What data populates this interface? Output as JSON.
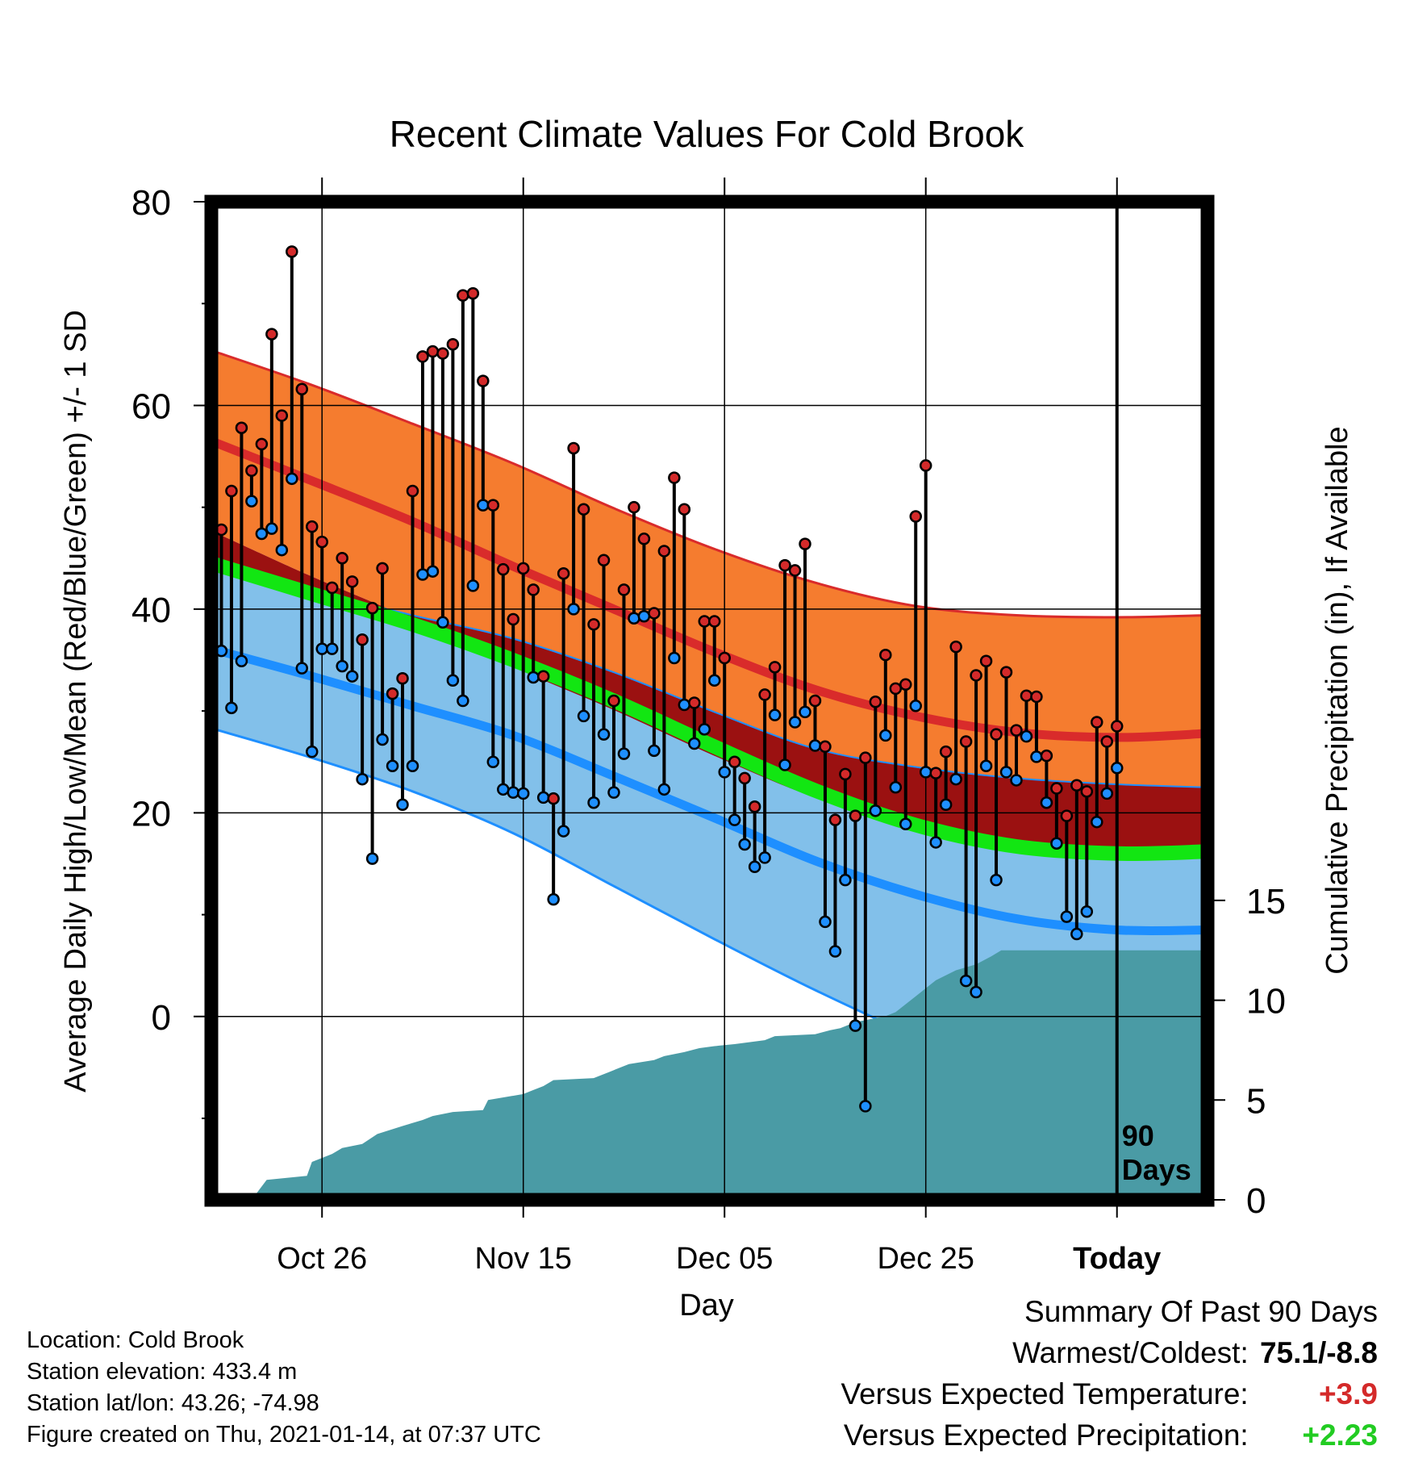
{
  "title": "Recent Climate Values For Cold Brook",
  "footer": {
    "location": "Location: Cold Brook",
    "elevation": "Station elevation: 433.4 m",
    "latlon": "Station lat/lon: 43.26; -74.98",
    "created": "Figure created on Thu, 2021-01-14, at 07:37 UTC"
  },
  "summary": {
    "heading": "Summary Of Past 90 Days",
    "warmest_coldest_label": "Warmest/Coldest:",
    "warmest_coldest_value": "75.1/-8.8",
    "temp_label": "Versus Expected Temperature:",
    "temp_value": "+3.9",
    "precip_label": "Versus Expected Precipitation:",
    "precip_value": "+2.23"
  },
  "chart_data": {
    "type": "line",
    "xlabel": "Day",
    "ylabel": "Average Daily High/Low/Mean (Red/Blue/Green) +/- 1 SD",
    "y2label": "Cumulative Precipitation (in), If Available",
    "ylim": [
      -18,
      80
    ],
    "y2lim": [
      0,
      50
    ],
    "xlim": [
      -90,
      9
    ],
    "x_tick_days": [
      -79,
      -59,
      -39,
      -19,
      0
    ],
    "x_tick_labels": [
      "Oct 26",
      "Nov 15",
      "Dec 05",
      "Dec 25",
      "Today"
    ],
    "y_ticks": [
      0,
      20,
      40,
      60,
      80
    ],
    "y_minor_ticks": [
      -10,
      10,
      30,
      50,
      70
    ],
    "y2_ticks": [
      0,
      5,
      10,
      15
    ],
    "today_marker_label": [
      "90",
      "Days"
    ],
    "colors": {
      "high_band": "#f57c2f",
      "high_line": "#d92b2b",
      "high_edge": "#d92b2b",
      "low_band": "#82c0ea",
      "low_line": "#1e8fff",
      "low_edge": "#1e8fff",
      "mean_line": "#12e612",
      "overlap_band": "#9b1111",
      "precip_fill": "#4a9ba5",
      "high_dot": "#d42a2a",
      "low_dot": "#1e8fff"
    },
    "normals": {
      "x": [
        -90,
        -80,
        -70,
        -60,
        -50,
        -40,
        -30,
        -20,
        -10,
        0,
        9
      ],
      "high_upper": [
        65.4,
        62.0,
        58.2,
        54.3,
        49.9,
        45.9,
        42.6,
        40.3,
        39.4,
        39.2,
        39.4
      ],
      "high_mean": [
        56.5,
        52.6,
        48.6,
        44.2,
        40.0,
        35.8,
        32.1,
        29.5,
        27.9,
        27.4,
        27.8
      ],
      "high_lower": [
        47.7,
        43.2,
        39.0,
        34.3,
        30.1,
        25.6,
        21.5,
        18.6,
        16.6,
        15.9,
        16.1
      ],
      "low_upper": [
        45.2,
        41.9,
        39.4,
        37.1,
        33.8,
        29.9,
        26.3,
        24.5,
        23.4,
        22.8,
        22.5
      ],
      "low_mean": [
        36.1,
        33.4,
        30.5,
        27.6,
        23.6,
        19.5,
        15.3,
        12.0,
        9.6,
        8.5,
        8.5
      ],
      "low_lower": [
        28.3,
        25.4,
        22.1,
        18.0,
        12.8,
        7.6,
        2.6,
        -1.9,
        -5.5,
        -7.4,
        -8.0
      ],
      "mean": [
        44.5,
        41.5,
        38.5,
        35.0,
        31.0,
        26.5,
        22.2,
        18.8,
        16.7,
        16.0,
        16.2
      ]
    },
    "daily": {
      "x": [
        -89,
        -88,
        -87,
        -86,
        -85,
        -84,
        -83,
        -82,
        -81,
        -80,
        -79,
        -78,
        -77,
        -76,
        -75,
        -74,
        -73,
        -72,
        -71,
        -70,
        -69,
        -68,
        -67,
        -66,
        -65,
        -64,
        -63,
        -62,
        -61,
        -60,
        -59,
        -58,
        -57,
        -56,
        -55,
        -54,
        -53,
        -52,
        -51,
        -50,
        -49,
        -48,
        -47,
        -46,
        -45,
        -44,
        -43,
        -42,
        -41,
        -40,
        -39,
        -38,
        -37,
        -36,
        -35,
        -34,
        -33,
        -32,
        -31,
        -30,
        -29,
        -28,
        -27,
        -26,
        -25,
        -24,
        -23,
        -22,
        -21,
        -20,
        -19,
        -18,
        -17,
        -16,
        -15,
        -14,
        -13,
        -12,
        -11,
        -10,
        -9,
        -8,
        -7,
        -6,
        -5,
        -4,
        -3,
        -2,
        -1,
        0
      ],
      "high": [
        47.8,
        51.6,
        57.8,
        53.6,
        56.2,
        67.0,
        59.0,
        75.1,
        61.6,
        48.1,
        46.6,
        42.1,
        45.0,
        42.7,
        37.0,
        40.1,
        44.0,
        31.7,
        33.2,
        51.6,
        64.8,
        65.3,
        65.1,
        66.0,
        70.8,
        71.0,
        62.4,
        50.2,
        43.9,
        39.0,
        44.0,
        41.9,
        33.4,
        21.4,
        43.5,
        55.8,
        49.8,
        38.5,
        44.8,
        31.0,
        41.9,
        50.0,
        46.9,
        39.6,
        45.7,
        52.9,
        49.8,
        30.8,
        38.8,
        38.8,
        35.2,
        25.0,
        23.4,
        20.6,
        31.6,
        34.3,
        44.3,
        43.8,
        46.4,
        31.0,
        26.5,
        19.3,
        23.8,
        19.7,
        25.4,
        30.9,
        35.5,
        32.2,
        32.6,
        49.1,
        54.1,
        23.9,
        26.0,
        36.3,
        27.0,
        33.5,
        34.9,
        27.7,
        33.8,
        28.1,
        31.5,
        31.4,
        25.6,
        22.4,
        19.7,
        22.7,
        22.1,
        28.9,
        27.0,
        28.5
      ],
      "low": [
        35.9,
        30.3,
        34.9,
        50.6,
        47.4,
        47.9,
        45.8,
        52.8,
        34.2,
        26.0,
        36.1,
        36.1,
        34.4,
        33.4,
        23.3,
        15.5,
        27.2,
        24.6,
        20.8,
        24.6,
        43.4,
        43.7,
        38.7,
        33.0,
        31.0,
        42.3,
        50.2,
        25.0,
        22.3,
        22.0,
        21.9,
        33.3,
        21.5,
        11.5,
        18.2,
        40.0,
        29.5,
        21.0,
        27.7,
        22.0,
        25.8,
        39.1,
        39.3,
        26.1,
        22.3,
        35.2,
        30.6,
        26.8,
        28.2,
        33.0,
        24.0,
        19.3,
        16.9,
        14.7,
        15.6,
        29.6,
        24.7,
        28.9,
        29.9,
        26.6,
        9.3,
        6.4,
        13.4,
        -0.9,
        -8.8,
        20.2,
        27.6,
        22.5,
        18.9,
        30.5,
        24.0,
        17.1,
        20.8,
        23.3,
        3.5,
        2.4,
        24.6,
        13.4,
        24.0,
        23.2,
        27.5,
        25.5,
        21.0,
        17.0,
        9.8,
        8.1,
        10.3,
        19.1,
        21.9,
        24.4
      ]
    },
    "precip": {
      "x": [
        -86,
        -84.5,
        -80.5,
        -80,
        -78,
        -77,
        -75,
        -73.5,
        -71,
        -69,
        -68,
        -66,
        -63,
        -62.5,
        -59,
        -58,
        -57,
        -56,
        -52,
        -50.5,
        -50,
        -48.5,
        -46,
        -45,
        -43,
        -41.5,
        -40,
        -38,
        -35,
        -34,
        -30,
        -28.5,
        -27.5,
        -26,
        -23,
        -22,
        -20,
        -18,
        -16,
        -14,
        -12.5,
        -11.5,
        -10,
        9
      ],
      "y": [
        0,
        1.0,
        1.2,
        1.9,
        2.3,
        2.6,
        2.8,
        3.3,
        3.7,
        4.0,
        4.2,
        4.4,
        4.5,
        5.0,
        5.3,
        5.5,
        5.7,
        6.0,
        6.1,
        6.4,
        6.5,
        6.8,
        7.0,
        7.2,
        7.4,
        7.6,
        7.7,
        7.8,
        8.0,
        8.2,
        8.3,
        8.5,
        8.6,
        8.9,
        9.2,
        9.4,
        10.2,
        11.0,
        11.5,
        11.8,
        12.2,
        12.5,
        12.5,
        12.5
      ]
    }
  }
}
